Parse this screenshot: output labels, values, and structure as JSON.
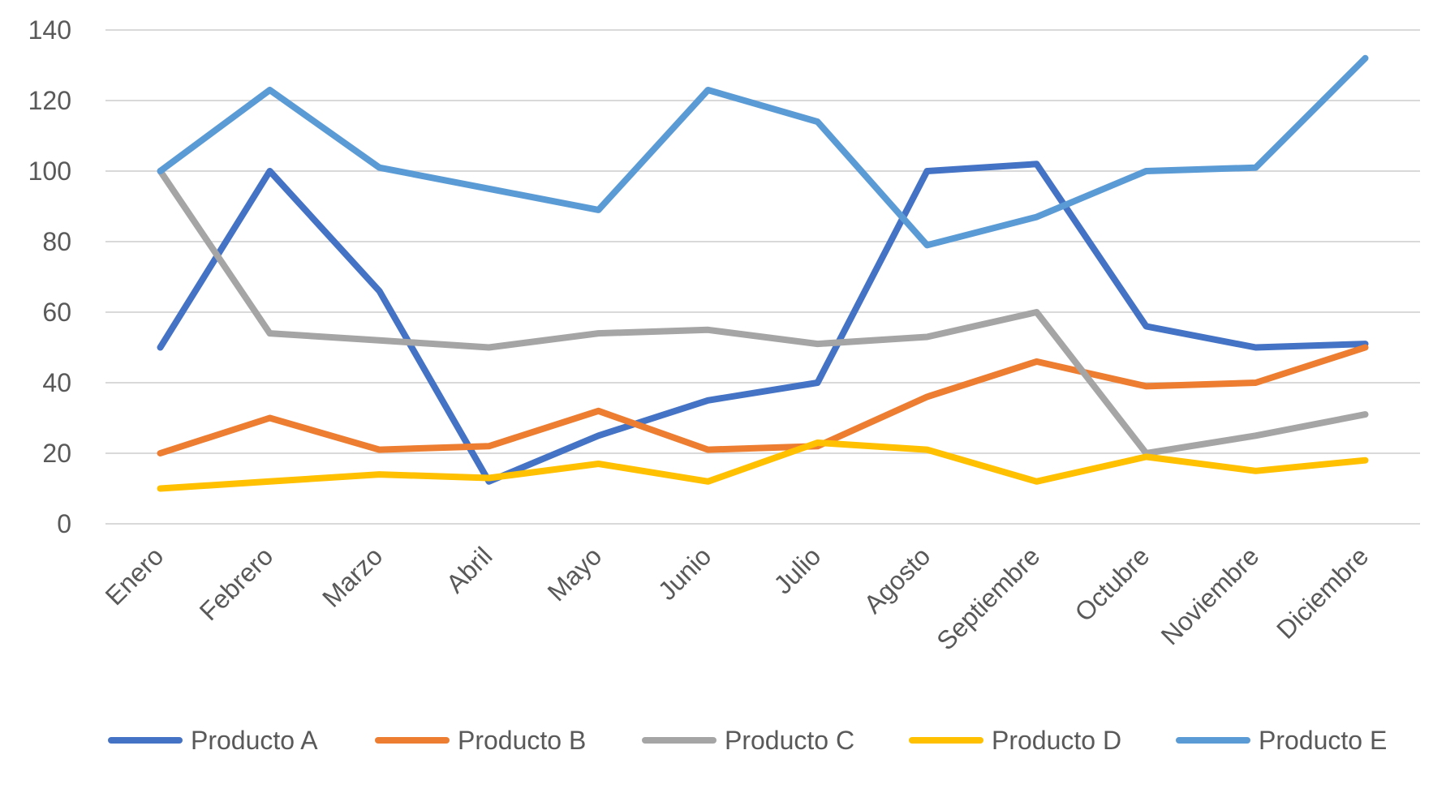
{
  "chart_data": {
    "type": "line",
    "title": "",
    "xlabel": "",
    "ylabel": "",
    "ylim": [
      0,
      140
    ],
    "yticks": [
      0,
      20,
      40,
      60,
      80,
      100,
      120,
      140
    ],
    "grid": true,
    "legend_position": "bottom",
    "categories": [
      "Enero",
      "Febrero",
      "Marzo",
      "Abril",
      "Mayo",
      "Junio",
      "Julio",
      "Agosto",
      "Septiembre",
      "Octubre",
      "Noviembre",
      "Diciembre"
    ],
    "series": [
      {
        "name": "Producto A",
        "color": "#4472C4",
        "values": [
          50,
          100,
          66,
          12,
          25,
          35,
          40,
          100,
          102,
          56,
          50,
          51
        ]
      },
      {
        "name": "Producto B",
        "color": "#ED7D31",
        "values": [
          20,
          30,
          21,
          22,
          32,
          21,
          22,
          36,
          46,
          39,
          40,
          50
        ]
      },
      {
        "name": "Producto C",
        "color": "#A5A5A5",
        "values": [
          100,
          54,
          52,
          50,
          54,
          55,
          51,
          53,
          60,
          20,
          25,
          31
        ]
      },
      {
        "name": "Producto D",
        "color": "#FFC000",
        "values": [
          10,
          12,
          14,
          13,
          17,
          12,
          23,
          21,
          12,
          19,
          15,
          18
        ]
      },
      {
        "name": "Producto E",
        "color": "#5B9BD5",
        "values": [
          100,
          123,
          101,
          95,
          89,
          123,
          114,
          79,
          87,
          100,
          101,
          132
        ]
      }
    ]
  }
}
